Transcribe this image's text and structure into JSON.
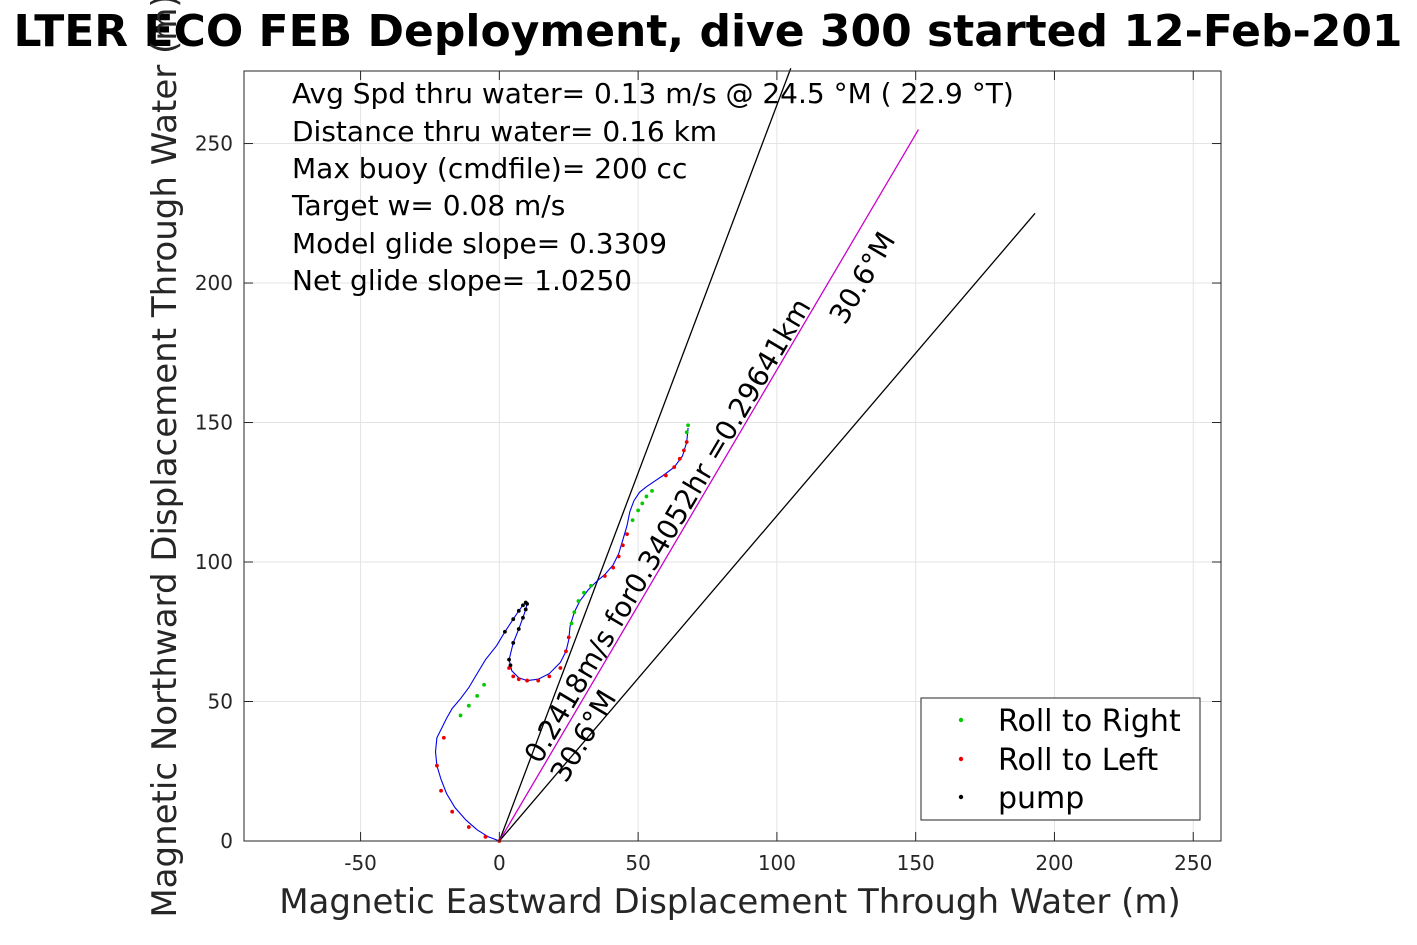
{
  "chart_data": {
    "type": "scatter",
    "title": "LTER ECO FEB Deployment, dive 300 started 12-Feb-201",
    "xlabel": "Magnetic Eastward Displacement Through Water (m)",
    "ylabel": "Magnetic Northward Displacement Through Water (m)",
    "xlim": [
      -92,
      260
    ],
    "ylim": [
      0,
      276
    ],
    "xticks": [
      -50,
      0,
      50,
      100,
      150,
      200,
      250
    ],
    "yticks": [
      0,
      50,
      100,
      150,
      200,
      250
    ],
    "grid": true,
    "legend_position": "bottom-right",
    "annotations": [
      "Avg Spd thru water=  0.13 m/s @  24.5 °M ( 22.9 °T)",
      "Distance thru water=  0.16 km",
      "Max buoy (cmdfile)= 200 cc",
      "Target w= 0.08 m/s",
      "Model glide slope= 0.3309",
      "Net glide slope= 1.0250"
    ],
    "bearing_labels": {
      "main": "0.2418m/s for0.34052hr =0.29641km",
      "heading_upper": "30.6°M",
      "heading_lower": "30.6°M"
    },
    "lines": [
      {
        "name": "",
        "color": "#000000",
        "x": [
          0,
          105
        ],
        "y": [
          0,
          277
        ]
      },
      {
        "name": "",
        "color": "#cc00cc",
        "x": [
          0,
          151
        ],
        "y": [
          0,
          255
        ]
      },
      {
        "name": "",
        "color": "#000000",
        "x": [
          0,
          193
        ],
        "y": [
          0,
          225
        ]
      }
    ],
    "track": {
      "color": "#0000ee",
      "x": [
        0,
        -4,
        -8,
        -12,
        -16,
        -19,
        -21,
        -22.5,
        -23,
        -22.5,
        -21,
        -19,
        -17,
        -14,
        -11,
        -8,
        -5,
        -1,
        2,
        5,
        7,
        8.5,
        9.5,
        10,
        9.5,
        8.5,
        7,
        5,
        3.5,
        4.5,
        7,
        10,
        14,
        18,
        22,
        24,
        25,
        25.5,
        27,
        29,
        32,
        35,
        38,
        41,
        43,
        44.5,
        46,
        47,
        48.5,
        50.5,
        53,
        56,
        59,
        63,
        66,
        67.5,
        68
      ],
      "y": [
        0,
        1.5,
        4,
        7.5,
        12,
        17,
        22,
        27,
        32,
        37,
        40,
        44,
        47.5,
        51,
        55,
        60,
        65,
        70,
        75,
        79.5,
        82.5,
        84.5,
        85.5,
        85,
        83,
        80,
        76,
        71,
        65,
        61,
        58.5,
        57.5,
        58,
        60,
        64,
        68,
        72,
        77,
        82,
        86,
        90,
        93,
        95.5,
        99,
        103,
        108,
        113,
        118,
        122,
        125,
        127,
        129,
        131,
        134,
        138,
        143,
        148
      ]
    },
    "series": [
      {
        "name": "Roll to Right",
        "color": "#00cc00",
        "x": [
          -14,
          -11,
          -8,
          -5.5,
          26,
          27,
          28.5,
          30.5,
          33,
          48,
          50,
          51.5,
          53,
          55,
          67.5,
          68
        ],
        "y": [
          45,
          48.5,
          52,
          56,
          78,
          82,
          86,
          89,
          91.5,
          115,
          118.5,
          121,
          123.5,
          125.5,
          146.5,
          149
        ]
      },
      {
        "name": "Roll to Left",
        "color": "#ee0000",
        "x": [
          -20,
          -22.5,
          -21,
          -17,
          -11,
          -5,
          0,
          3.5,
          5,
          7,
          10,
          14,
          18,
          22,
          24,
          25,
          38,
          41,
          43,
          44.5,
          46,
          60,
          63,
          65,
          66.5,
          67.5
        ],
        "y": [
          37,
          27,
          18,
          10.5,
          5,
          1.5,
          0,
          62,
          59,
          58,
          57.5,
          57.5,
          59,
          62,
          68,
          73,
          95,
          98,
          102,
          106,
          110,
          131,
          134,
          137,
          140,
          143
        ]
      },
      {
        "name": "pump",
        "color": "#000000",
        "x": [
          2,
          5,
          7,
          8.5,
          9.5,
          10,
          9.5,
          8.5,
          7,
          5,
          3.5,
          4
        ],
        "y": [
          75,
          79.5,
          82.5,
          84.5,
          85.5,
          85,
          83,
          80,
          76,
          71,
          65,
          63
        ]
      }
    ]
  }
}
